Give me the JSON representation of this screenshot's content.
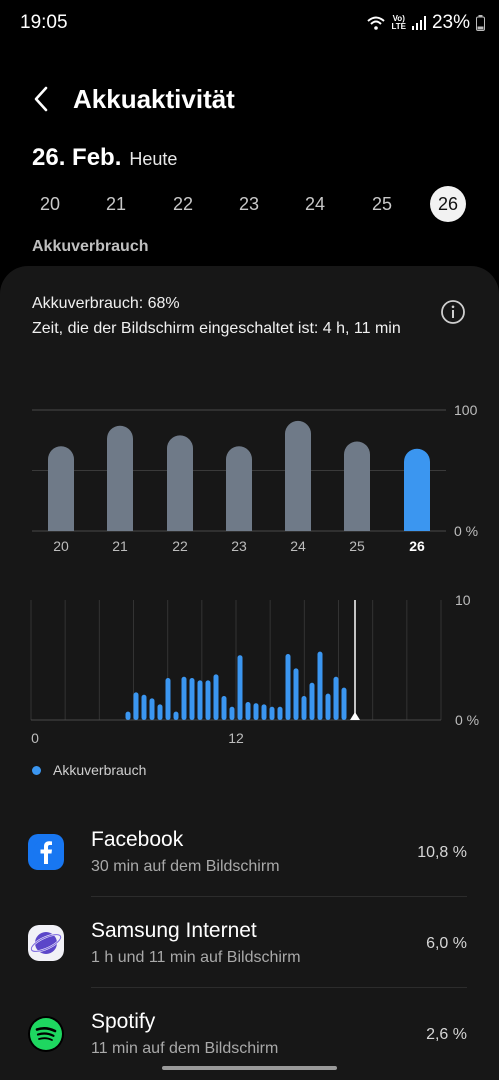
{
  "status_bar": {
    "time": "19:05",
    "battery": "23%",
    "network_top": "Vo)",
    "network_bottom": "LTE",
    "icons": [
      "wifi-icon",
      "volte-lte-icon",
      "signal-icon",
      "battery-icon"
    ]
  },
  "header": {
    "back_icon": "chevron-left-icon",
    "title": "Akkuaktivität"
  },
  "date": {
    "main": "26. Feb.",
    "sub": "Heute"
  },
  "days": [
    {
      "label": "20",
      "selected": false
    },
    {
      "label": "21",
      "selected": false
    },
    {
      "label": "22",
      "selected": false
    },
    {
      "label": "23",
      "selected": false
    },
    {
      "label": "24",
      "selected": false
    },
    {
      "label": "25",
      "selected": false
    },
    {
      "label": "26",
      "selected": true
    }
  ],
  "section_label": "Akkuverbrauch",
  "summary": {
    "usage": "Akkuverbrauch: 68%",
    "screen_time": "Zeit, die der Bildschirm eingeschaltet ist: 4 h, 11 min",
    "info_icon": "info-icon"
  },
  "colors": {
    "accent": "#3b96f0",
    "bar_inactive": "#6f7a88",
    "card": "#171717",
    "background": "#000000"
  },
  "chart_data": [
    {
      "type": "bar",
      "categories": [
        "20",
        "21",
        "22",
        "23",
        "24",
        "25",
        "26"
      ],
      "values": [
        70,
        87,
        79,
        70,
        91,
        74,
        68
      ],
      "highlight_index": 6,
      "ylim": [
        0,
        100
      ],
      "y_tick_labels": [
        "100",
        "0 %"
      ],
      "grid": true
    },
    {
      "type": "bar",
      "x_tick_labels": [
        "0",
        "12"
      ],
      "y_tick_labels": [
        "10",
        "0 %"
      ],
      "ylim": [
        0,
        10
      ],
      "legend": [
        "Akkuverbrauch"
      ],
      "legend_position": "bottom-left",
      "values": [
        0.7,
        2.3,
        2.1,
        1.8,
        1.3,
        3.5,
        0.7,
        3.6,
        3.5,
        3.3,
        3.3,
        3.8,
        2.0,
        1.1,
        5.4,
        1.5,
        1.4,
        1.3,
        1.1,
        1.1,
        5.5,
        4.3,
        2.0,
        3.1,
        5.7,
        2.2,
        3.6,
        2.7
      ],
      "current_time_marker": true
    }
  ],
  "apps": [
    {
      "name": "Facebook",
      "sub": "30 min auf dem Bildschirm",
      "percent": "10,8 %",
      "icon": "facebook-icon"
    },
    {
      "name": "Samsung Internet",
      "sub": "1 h und 11 min auf Bildschirm",
      "percent": "6,0 %",
      "icon": "samsung-internet-icon"
    },
    {
      "name": "Spotify",
      "sub": "11 min auf dem Bildschirm",
      "percent": "2,6 %",
      "icon": "spotify-icon"
    }
  ]
}
